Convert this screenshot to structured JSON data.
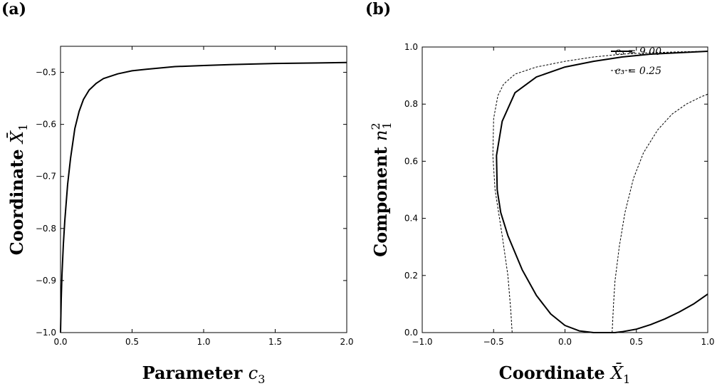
{
  "panels": {
    "a": {
      "label": "(a)"
    },
    "b": {
      "label": "(b)"
    }
  },
  "chart_data": [
    {
      "type": "line",
      "panel": "(a)",
      "xlabel": "Parameter c₃",
      "ylabel": "Coordinate X̄₁",
      "xlim": [
        0.0,
        2.0
      ],
      "ylim": [
        -1.0,
        -0.45
      ],
      "xticks": [
        "0.0",
        "0.5",
        "1.0",
        "1.5",
        "2.0"
      ],
      "yticks": [
        "−1.0",
        "−0.9",
        "−0.8",
        "−0.7",
        "−0.6",
        "−0.5"
      ],
      "xtick_values": [
        0.0,
        0.5,
        1.0,
        1.5,
        2.0
      ],
      "ytick_values": [
        -1.0,
        -0.9,
        -0.8,
        -0.7,
        -0.6,
        -0.5
      ],
      "grid": false,
      "series": [
        {
          "style": "solid",
          "x": [
            0.0,
            0.005,
            0.01,
            0.02,
            0.03,
            0.05,
            0.07,
            0.1,
            0.13,
            0.16,
            0.2,
            0.25,
            0.3,
            0.4,
            0.5,
            0.6,
            0.8,
            1.0,
            1.2,
            1.5,
            1.8,
            2.0
          ],
          "y": [
            -1.0,
            -0.935,
            -0.89,
            -0.83,
            -0.785,
            -0.715,
            -0.665,
            -0.608,
            -0.575,
            -0.552,
            -0.534,
            -0.521,
            -0.512,
            -0.503,
            -0.497,
            -0.494,
            -0.489,
            -0.487,
            -0.485,
            -0.483,
            -0.482,
            -0.481
          ]
        }
      ]
    },
    {
      "type": "line",
      "panel": "(b)",
      "xlabel": "Coordinate X̄₁",
      "ylabel": "Component n₁²",
      "xlim": [
        -1.0,
        1.0
      ],
      "ylim": [
        0.0,
        1.0
      ],
      "xticks": [
        "−1.0",
        "−0.5",
        "0.0",
        "0.5",
        "1.0"
      ],
      "yticks": [
        "0.0",
        "0.2",
        "0.4",
        "0.6",
        "0.8",
        "1.0"
      ],
      "xtick_values": [
        -1.0,
        -0.5,
        0.0,
        0.5,
        1.0
      ],
      "ytick_values": [
        0.0,
        0.2,
        0.4,
        0.6,
        0.8,
        1.0
      ],
      "grid": false,
      "legend_position": "top-right",
      "series": [
        {
          "name": "c₃ = 9.00",
          "style": "solid",
          "x": [
            1.0,
            0.8,
            0.6,
            0.4,
            0.2,
            0.0,
            -0.2,
            -0.35,
            -0.44,
            -0.48,
            -0.475,
            -0.45,
            -0.4,
            -0.3,
            -0.2,
            -0.1,
            0.0,
            0.1,
            0.2,
            0.3,
            0.35,
            0.4,
            0.5,
            0.6,
            0.7,
            0.8,
            0.9,
            1.0
          ],
          "y": [
            0.985,
            0.98,
            0.975,
            0.965,
            0.95,
            0.93,
            0.895,
            0.84,
            0.74,
            0.62,
            0.5,
            0.42,
            0.34,
            0.22,
            0.13,
            0.065,
            0.025,
            0.006,
            0.0,
            0.0,
            0.0,
            0.003,
            0.012,
            0.028,
            0.048,
            0.072,
            0.1,
            0.135
          ]
        },
        {
          "name": "c₃ = 0.25",
          "style": "dashed",
          "x": [
            1.0,
            0.8,
            0.6,
            0.4,
            0.2,
            0.0,
            -0.2,
            -0.35,
            -0.43,
            -0.47,
            -0.5,
            -0.505,
            -0.49,
            -0.44,
            -0.4,
            -0.38,
            -0.37
          ],
          "y": [
            0.985,
            0.983,
            0.98,
            0.975,
            0.965,
            0.95,
            0.93,
            0.905,
            0.87,
            0.83,
            0.75,
            0.62,
            0.5,
            0.34,
            0.2,
            0.08,
            0.0
          ]
        },
        {
          "name": "",
          "style": "dashed",
          "x": [
            0.33,
            0.335,
            0.34,
            0.35,
            0.38,
            0.42,
            0.48,
            0.55,
            0.65,
            0.75,
            0.85,
            0.95,
            1.0
          ],
          "y": [
            0.0,
            0.05,
            0.1,
            0.18,
            0.3,
            0.42,
            0.54,
            0.63,
            0.71,
            0.765,
            0.8,
            0.825,
            0.835
          ]
        }
      ]
    }
  ]
}
